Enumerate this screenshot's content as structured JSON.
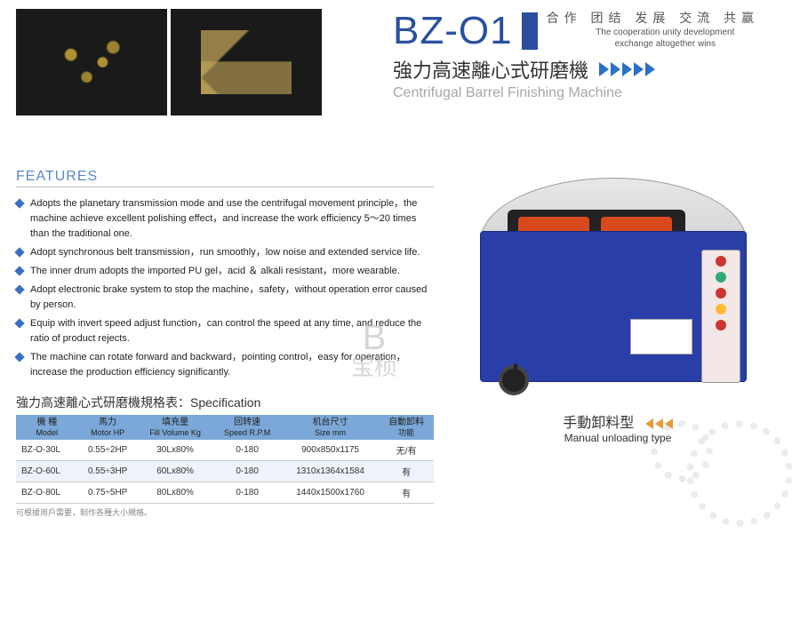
{
  "slogan": {
    "cn": "合作  团结  发展  交流  共赢",
    "en_l1": "The cooperation unity development",
    "en_l2": "exchange altogether wins"
  },
  "product": {
    "model_code": "BZ-O1",
    "cn_name": "強力高速離心式研磨機",
    "en_name": "Centrifugal Barrel Finishing Machine"
  },
  "features": {
    "heading": "FEATURES",
    "items": [
      "Adopts the planetary transmission mode and use the centrifugal movement principle，the machine achieve excellent polishing effect，and increase the work efficiency 5～20 times than the traditional one.",
      "Adopt synchronous belt transmission，run smoothly，low noise and extended service life.",
      "The inner drum adopts the imported PU gel，acid ＆ alkali resistant，more wearable.",
      "Adopt electronic brake system to stop the machine，safety，without operation error caused by person.",
      "Equip with invert speed adjust function，can control the speed at any time, and reduce the ratio of product rejects.",
      "The machine can rotate forward and backward，pointing control，easy for operation，increase the production efficiency significantly."
    ]
  },
  "spec": {
    "title": "強力高速離心式研磨機規格表：Specification",
    "columns": [
      {
        "cn": "機 種",
        "en": "Model"
      },
      {
        "cn": "馬力",
        "en": "Motor HP"
      },
      {
        "cn": "填充量",
        "en": "Fill Volume Kg"
      },
      {
        "cn": "回转速",
        "en": "Speed R.P.M"
      },
      {
        "cn": "机台尺寸",
        "en": "Size mm"
      },
      {
        "cn": "自動卸料",
        "en": "功能"
      }
    ],
    "rows": [
      [
        "BZ-O-30L",
        "0.55÷2HP",
        "30Lx80%",
        "0-180",
        "900x850x1175",
        "无/有"
      ],
      [
        "BZ-O-60L",
        "0.55÷3HP",
        "60Lx80%",
        "0-180",
        "1310x1364x1584",
        "有"
      ],
      [
        "BZ-O-80L",
        "0.75÷5HP",
        "80Lx80%",
        "0-180",
        "1440x1500x1760",
        "有"
      ]
    ],
    "footnote": "可根據用戶需要，制作各種大小規格。"
  },
  "variant": {
    "cn": "手動卸料型",
    "en": "Manual unloading type"
  },
  "colors": {
    "brand_blue": "#2b4fa0",
    "th_bg": "#7ba8d8",
    "arrow_blue": "#2b6fc7",
    "arrow_orange": "#e89a3a",
    "machine_body": "#2a3ea8",
    "machine_drum": "#d84a1e"
  },
  "watermark": "宝桢"
}
